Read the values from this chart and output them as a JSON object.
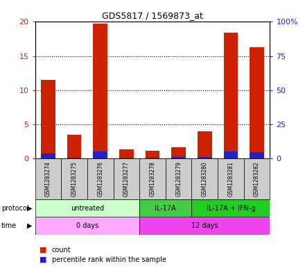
{
  "title": "GDS5817 / 1569873_at",
  "samples": [
    "GSM1283274",
    "GSM1283275",
    "GSM1283276",
    "GSM1283277",
    "GSM1283278",
    "GSM1283279",
    "GSM1283280",
    "GSM1283281",
    "GSM1283282"
  ],
  "count_values": [
    11.5,
    3.5,
    19.7,
    1.3,
    1.1,
    1.6,
    4.0,
    18.4,
    16.3
  ],
  "percentile_values": [
    3.3,
    0.5,
    5.0,
    0.6,
    0.5,
    0.8,
    1.0,
    5.0,
    4.5
  ],
  "ylim_left": [
    0,
    20
  ],
  "ylim_right": [
    0,
    100
  ],
  "yticks_left": [
    0,
    5,
    10,
    15,
    20
  ],
  "yticks_right": [
    0,
    25,
    50,
    75,
    100
  ],
  "ytick_labels_left": [
    "0",
    "5",
    "10",
    "15",
    "20"
  ],
  "ytick_labels_right": [
    "0",
    "25",
    "50",
    "75",
    "100%"
  ],
  "bar_color_count": "#cc2200",
  "bar_color_pct": "#2222cc",
  "protocol_groups": [
    {
      "label": "untreated",
      "start": 0,
      "end": 3,
      "color": "#ccffcc"
    },
    {
      "label": "IL-17A",
      "start": 4,
      "end": 5,
      "color": "#44cc44"
    },
    {
      "label": "IL-17A + IFN-g",
      "start": 6,
      "end": 8,
      "color": "#22cc22"
    }
  ],
  "time_groups": [
    {
      "label": "0 days",
      "start": 0,
      "end": 3,
      "color": "#ffaaff"
    },
    {
      "label": "12 days",
      "start": 4,
      "end": 8,
      "color": "#ee44ee"
    }
  ],
  "legend_count_label": "count",
  "legend_pct_label": "percentile rank within the sample",
  "background_color": "#ffffff",
  "axis_label_color_left": "#cc2200",
  "axis_label_color_right": "#2222cc",
  "sample_box_color": "#cccccc"
}
